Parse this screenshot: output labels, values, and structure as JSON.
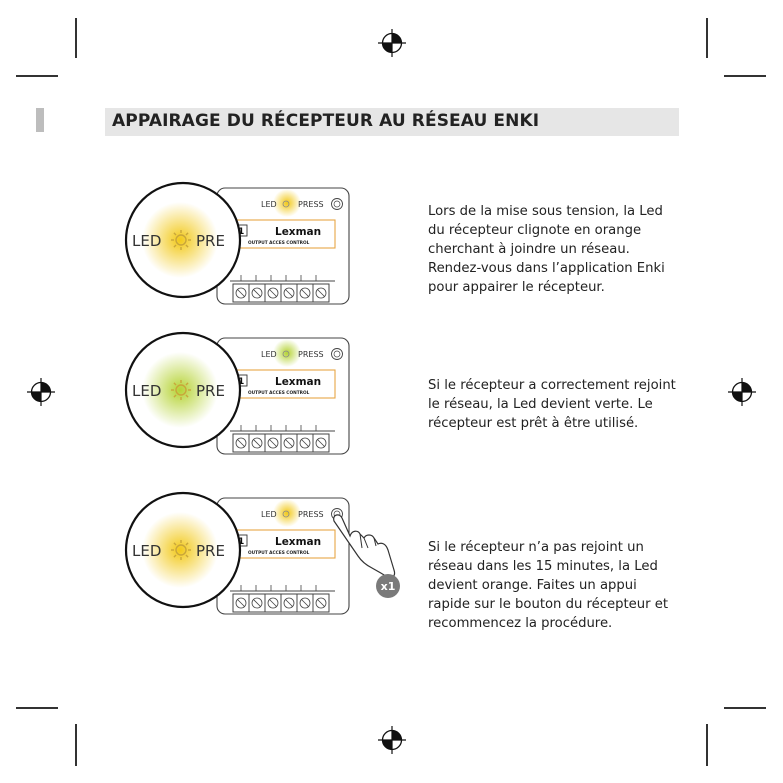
{
  "header": {
    "title": "APPAIRAGE DU RÉCEPTEUR AU RÉSEAU ENKI"
  },
  "module": {
    "led_label": "LED",
    "press_label": "PRESS",
    "zoom_led": "LED",
    "zoom_press": "PRE",
    "channel": "1",
    "brand": "Lexman",
    "caption": "OUTPUT ACCES CONTROL"
  },
  "steps": [
    {
      "text": "Lors de la mise sous tension, la Led du récepteur clignote en orange cherchant à joindre un réseau. Rendez-vous dans l’application Enki pour appairer le récepteur.",
      "led_color": "#f2c919"
    },
    {
      "text": "Si le récepteur a correctement rejoint le réseau, la Led devient verte. Le récepteur est prêt à être utilisé.",
      "led_color": "#b5d334"
    },
    {
      "text": "Si le récepteur n’a pas rejoint un réseau dans les 15 minutes, la Led devient orange. Faites un appui rapide sur le bouton du récepteur et recommencez la procédure.",
      "led_color": "#f2c919",
      "badge": "x1"
    }
  ],
  "colors": {
    "orange_glow": "#f2c919",
    "green_glow": "#b5d334",
    "badge_bg": "#7a7a7a",
    "header_bg": "#e6e6e6"
  }
}
